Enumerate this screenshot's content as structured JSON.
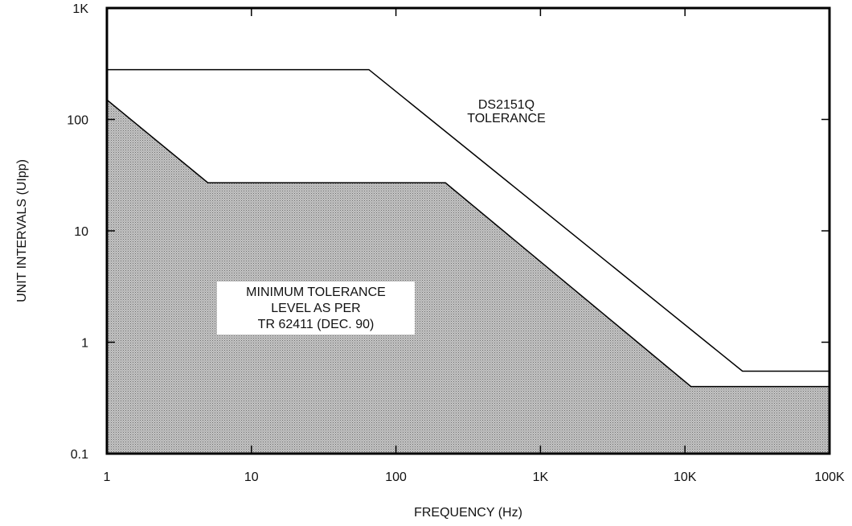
{
  "chart_data": {
    "type": "area",
    "xlabel": "FREQUENCY (Hz)",
    "ylabel": "UNIT INTERVALS (UIpp)",
    "x_scale": "log",
    "y_scale": "log",
    "xlim": [
      1,
      100000
    ],
    "ylim": [
      0.1,
      1000
    ],
    "x_ticks": [
      {
        "value": 1,
        "label": "1"
      },
      {
        "value": 10,
        "label": "10"
      },
      {
        "value": 100,
        "label": "100"
      },
      {
        "value": 1000,
        "label": "1K"
      },
      {
        "value": 10000,
        "label": "10K"
      },
      {
        "value": 100000,
        "label": "100K"
      }
    ],
    "y_ticks": [
      {
        "value": 0.1,
        "label": "0.1"
      },
      {
        "value": 1,
        "label": "1"
      },
      {
        "value": 10,
        "label": "10"
      },
      {
        "value": 100,
        "label": "100"
      },
      {
        "value": 1000,
        "label": "1K"
      }
    ],
    "grid": false,
    "series": [
      {
        "label_lines": [
          "DS2151Q",
          "TOLERANCE"
        ],
        "style": "line",
        "color": "#000000",
        "points": [
          [
            1,
            280
          ],
          [
            65,
            280
          ],
          [
            25000,
            0.55
          ],
          [
            100000,
            0.55
          ]
        ]
      },
      {
        "label_lines": [
          "MINIMUM TOLERANCE",
          "LEVEL AS PER",
          "TR 62411 (DEC. 90)"
        ],
        "style": "filled-area",
        "fill": "#bdbdbd",
        "points": [
          [
            1,
            150
          ],
          [
            5,
            27
          ],
          [
            220,
            27
          ],
          [
            11000,
            0.4
          ],
          [
            100000,
            0.4
          ]
        ]
      }
    ]
  }
}
